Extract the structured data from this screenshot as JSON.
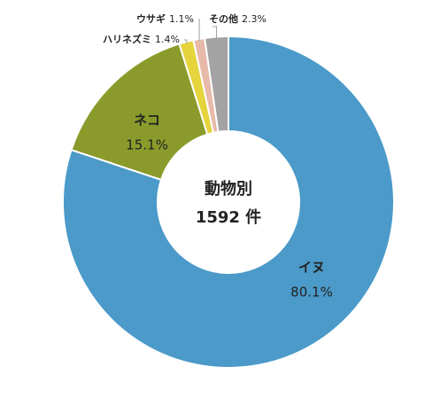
{
  "chart_data": {
    "type": "donut",
    "title": "動物別",
    "center_label": "1592 件",
    "categories": [
      "イヌ",
      "ネコ",
      "ハリネズミ",
      "ウサギ",
      "その他"
    ],
    "values": [
      80.1,
      15.1,
      1.4,
      1.1,
      2.3
    ],
    "value_labels": [
      "80.1%",
      "15.1%",
      "1.4%",
      "1.1%",
      "2.3%"
    ],
    "colors": [
      "#4b9ac9",
      "#8b9b2b",
      "#e5d43c",
      "#e8b9a9",
      "#a3a3a3"
    ]
  }
}
